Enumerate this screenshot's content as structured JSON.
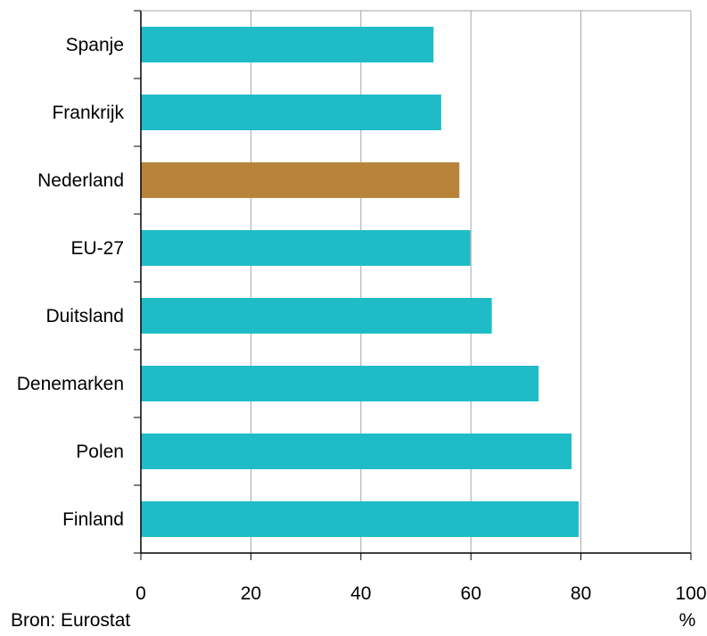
{
  "chart_data": {
    "type": "bar",
    "orientation": "horizontal",
    "categories": [
      "Spanje",
      "Frankrijk",
      "Nederland",
      "EU-27",
      "Duitsland",
      "Denemarken",
      "Polen",
      "Finland"
    ],
    "values": [
      53.2,
      54.6,
      57.9,
      59.9,
      63.8,
      72.3,
      78.3,
      79.6
    ],
    "xlim": [
      0,
      100
    ],
    "xticks": [
      "0",
      "20",
      "40",
      "60",
      "80",
      "100"
    ],
    "xunit": "%",
    "grid": true,
    "colors": {
      "default": "#1fbcc8",
      "highlight": "#b9843a",
      "grid": "#a6a6a6",
      "axis": "#000000"
    },
    "highlight_category": "Nederland"
  },
  "source": "Bron: Eurostat"
}
